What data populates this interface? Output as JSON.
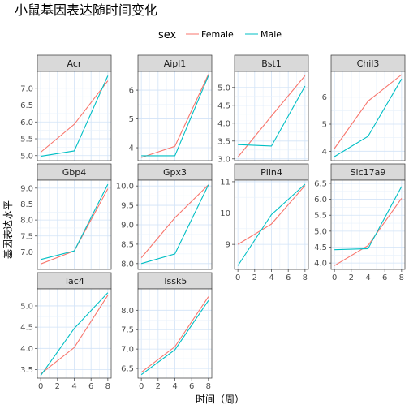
{
  "title": "小鼠基因表达随时间变化",
  "legend": {
    "title": "sex",
    "entries": [
      {
        "name": "Female",
        "color": "#F8766D"
      },
      {
        "name": "Male",
        "color": "#00BFC4"
      }
    ]
  },
  "chart_data": {
    "type": "line",
    "xlabel": "时间（周）",
    "ylabel": "基因表达水平",
    "x": [
      0,
      4,
      8
    ],
    "xticks": [
      0,
      2,
      4,
      6,
      8
    ],
    "xlim": [
      -0.4,
      8.4
    ],
    "facets": [
      {
        "name": "Acr",
        "ylim": [
          4.85,
          7.5
        ],
        "yticks": [
          5.0,
          5.5,
          6.0,
          6.5,
          7.0
        ],
        "ytick_labels": [
          "5.0",
          "5.5",
          "6.0",
          "6.5",
          "7.0"
        ],
        "series": [
          {
            "name": "Female",
            "values": [
              5.1,
              5.93,
              7.22
            ]
          },
          {
            "name": "Male",
            "values": [
              4.98,
              5.14,
              7.37
            ]
          }
        ]
      },
      {
        "name": "Aipl1",
        "ylim": [
          3.55,
          6.65
        ],
        "yticks": [
          4,
          5,
          6
        ],
        "ytick_labels": [
          "4",
          "5",
          "6"
        ],
        "series": [
          {
            "name": "Female",
            "values": [
              3.66,
              4.05,
              6.55
            ]
          },
          {
            "name": "Male",
            "values": [
              3.72,
              3.72,
              6.5
            ]
          }
        ]
      },
      {
        "name": "Bst1",
        "ylim": [
          2.95,
          5.45
        ],
        "yticks": [
          3.0,
          3.5,
          4.0,
          4.5,
          5.0
        ],
        "ytick_labels": [
          "3.0",
          "3.5",
          "4.0",
          "4.5",
          "5.0"
        ],
        "series": [
          {
            "name": "Female",
            "values": [
              3.05,
              4.2,
              5.33
            ]
          },
          {
            "name": "Male",
            "values": [
              3.4,
              3.36,
              5.04
            ]
          }
        ]
      },
      {
        "name": "Chil3",
        "ylim": [
          3.65,
          6.95
        ],
        "yticks": [
          4,
          5,
          6
        ],
        "ytick_labels": [
          "4",
          "5",
          "6"
        ],
        "series": [
          {
            "name": "Female",
            "values": [
              4.1,
              5.85,
              6.83
            ]
          },
          {
            "name": "Male",
            "values": [
              3.8,
              4.55,
              6.67
            ]
          }
        ]
      },
      {
        "name": "Gbp4",
        "ylim": [
          6.45,
          9.25
        ],
        "yticks": [
          7.0,
          7.5,
          8.0,
          8.5,
          9.0
        ],
        "ytick_labels": [
          "7.0",
          "7.5",
          "8.0",
          "8.5",
          "9.0"
        ],
        "series": [
          {
            "name": "Female",
            "values": [
              6.62,
              7.03,
              8.98
            ]
          },
          {
            "name": "Male",
            "values": [
              6.76,
              7.03,
              9.12
            ]
          }
        ]
      },
      {
        "name": "Gpx3",
        "ylim": [
          7.85,
          10.15
        ],
        "yticks": [
          8.0,
          8.5,
          9.0,
          9.5,
          10.0
        ],
        "ytick_labels": [
          "8.0",
          "8.5",
          "9.0",
          "9.5",
          "10.0"
        ],
        "series": [
          {
            "name": "Female",
            "values": [
              8.15,
              9.18,
              10.03
            ]
          },
          {
            "name": "Male",
            "values": [
              8.0,
              8.25,
              10.03
            ]
          }
        ]
      },
      {
        "name": "Plin4",
        "ylim": [
          8.2,
          11.05
        ],
        "yticks": [
          9,
          10,
          11
        ],
        "ytick_labels": [
          "9",
          "10",
          "11"
        ],
        "series": [
          {
            "name": "Female",
            "values": [
              9.0,
              9.65,
              10.88
            ]
          },
          {
            "name": "Male",
            "values": [
              8.32,
              9.95,
              10.92
            ]
          }
        ]
      },
      {
        "name": "Slc17a9",
        "ylim": [
          3.8,
          6.6
        ],
        "yticks": [
          4.0,
          4.5,
          5.0,
          5.5,
          6.0,
          6.5
        ],
        "ytick_labels": [
          "4.0",
          "4.5",
          "5.0",
          "5.5",
          "6.0",
          "6.5"
        ],
        "series": [
          {
            "name": "Female",
            "values": [
              3.92,
              4.55,
              6.03
            ]
          },
          {
            "name": "Male",
            "values": [
              4.42,
              4.45,
              6.4
            ]
          }
        ]
      },
      {
        "name": "Tac4",
        "ylim": [
          3.3,
          5.4
        ],
        "yticks": [
          3.5,
          4.0,
          4.5,
          5.0
        ],
        "ytick_labels": [
          "3.5",
          "4.0",
          "4.5",
          "5.0"
        ],
        "series": [
          {
            "name": "Female",
            "values": [
              3.4,
              4.02,
              5.25
            ]
          },
          {
            "name": "Male",
            "values": [
              3.36,
              4.47,
              5.31
            ]
          }
        ]
      },
      {
        "name": "Tssk5",
        "ylim": [
          6.25,
          8.55
        ],
        "yticks": [
          6.5,
          7.0,
          7.5,
          8.0
        ],
        "ytick_labels": [
          "6.5",
          "7.0",
          "7.5",
          "8.0"
        ],
        "series": [
          {
            "name": "Female",
            "values": [
              6.4,
              7.06,
              8.35
            ]
          },
          {
            "name": "Male",
            "values": [
              6.34,
              6.98,
              8.25
            ]
          }
        ]
      }
    ]
  }
}
